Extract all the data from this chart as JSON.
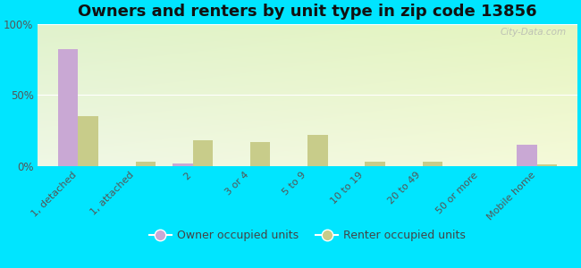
{
  "title": "Owners and renters by unit type in zip code 13856",
  "categories": [
    "1, detached",
    "1, attached",
    "2",
    "3 or 4",
    "5 to 9",
    "10 to 19",
    "20 to 49",
    "50 or more",
    "Mobile home"
  ],
  "owner_values": [
    82,
    0,
    2,
    0,
    0,
    0,
    0,
    0,
    15
  ],
  "renter_values": [
    35,
    3,
    18,
    17,
    22,
    3,
    3,
    0,
    1
  ],
  "owner_color": "#c9a8d4",
  "renter_color": "#c8cc8a",
  "figure_bg": "#00e5ff",
  "plot_bg_colors": [
    "#f5fdf0",
    "#dff0d8"
  ],
  "ylim": [
    0,
    100
  ],
  "yticks": [
    0,
    50,
    100
  ],
  "ytick_labels": [
    "0%",
    "50%",
    "100%"
  ],
  "bar_width": 0.35,
  "legend_owner": "Owner occupied units",
  "legend_renter": "Renter occupied units",
  "title_fontsize": 13,
  "watermark": "City-Data.com"
}
